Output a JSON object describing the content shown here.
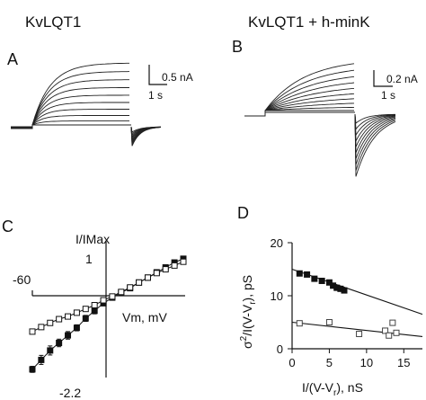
{
  "figure": {
    "panels": {
      "A": {
        "letter": "A",
        "title": "KvLQT1",
        "scale_current": "0.5 nA",
        "scale_time": "1 s"
      },
      "B": {
        "letter": "B",
        "title": "KvLQT1 + h-minK",
        "scale_current": "0.2 nA",
        "scale_time": "1 s"
      },
      "C": {
        "letter": "C"
      },
      "D": {
        "letter": "D"
      }
    }
  },
  "chart_data": [
    {
      "panel": "A",
      "type": "line",
      "description_note": "",
      "n_traces": 10,
      "title": "KvLQT1",
      "scale_bar": {
        "current": "0.5 nA",
        "time": "1 s"
      }
    },
    {
      "panel": "B",
      "type": "line",
      "n_traces": 10,
      "title": "KvLQT1 + h-minK",
      "scale_bar": {
        "current": "0.2 nA",
        "time": "1 s"
      }
    },
    {
      "panel": "C",
      "type": "scatter",
      "xlabel": "Vm, mV",
      "ylabel": "I/IMax",
      "x_tick_label": "-60",
      "y_top_label": "1",
      "y_bottom_label": "-2.2",
      "ylim": [
        -2.2,
        1
      ],
      "series": [
        {
          "marker": "filled-square",
          "x": [
            -130,
            -120,
            -110,
            -100,
            -90,
            -80,
            -70,
            -60,
            -50,
            -40,
            -30,
            -20,
            -10,
            0,
            10,
            20,
            30,
            40
          ],
          "y": [
            -1.95,
            -1.7,
            -1.45,
            -1.25,
            -1.05,
            -0.85,
            -0.6,
            -0.4,
            -0.2,
            -0.05,
            0.08,
            0.2,
            0.35,
            0.48,
            0.62,
            0.75,
            0.88,
            0.98
          ],
          "err": [
            0.08,
            0.12,
            0.12,
            0.1,
            0.1,
            0.08,
            0.08,
            0.08,
            0.06,
            0.05,
            0.05,
            0.05,
            0.05,
            0.05,
            0.05,
            0.05,
            0.05,
            0.05
          ]
        },
        {
          "marker": "open-square",
          "x": [
            -130,
            -120,
            -110,
            -100,
            -90,
            -80,
            -70,
            -60,
            -50,
            -40,
            -30,
            -20,
            -10,
            0,
            10,
            20,
            30,
            40
          ],
          "y": [
            -0.95,
            -0.83,
            -0.72,
            -0.62,
            -0.55,
            -0.45,
            -0.35,
            -0.25,
            -0.12,
            -0.02,
            0.1,
            0.22,
            0.35,
            0.48,
            0.6,
            0.7,
            0.8,
            0.9
          ],
          "err": [
            0.05,
            0.05,
            0.05,
            0.05,
            0.05,
            0.05,
            0.05,
            0.05,
            0.05,
            0.05,
            0.05,
            0.05,
            0.05,
            0.05,
            0.05,
            0.05,
            0.05,
            0.05
          ]
        }
      ]
    },
    {
      "panel": "D",
      "type": "scatter",
      "xlabel_parts": {
        "base": "I/(V-V",
        "sub": "r",
        "tail": "),  nS"
      },
      "ylabel_parts": {
        "sigma": "σ",
        "sup": "2",
        "mid": "/I(V-V",
        "sub": "r",
        "tail": "),  pS"
      },
      "xlim": [
        0,
        17.5
      ],
      "ylim": [
        0,
        20
      ],
      "x_ticks": [
        0,
        5,
        10,
        15
      ],
      "y_ticks": [
        0,
        10,
        20
      ],
      "series": [
        {
          "marker": "filled-square",
          "x": [
            1,
            2,
            3,
            4,
            5,
            5.5,
            6,
            6.5,
            7
          ],
          "y": [
            14.2,
            14.0,
            13.2,
            12.8,
            12.5,
            11.9,
            11.5,
            11.3,
            11.0
          ],
          "fit": {
            "x": [
              0,
              17.5
            ],
            "y": [
              15,
              6.5
            ]
          }
        },
        {
          "marker": "open-square",
          "x": [
            1,
            5,
            9,
            12.5,
            13,
            13.5,
            14
          ],
          "y": [
            4.8,
            5.0,
            2.8,
            3.4,
            2.5,
            4.9,
            3.0
          ],
          "fit": {
            "x": [
              0,
              17.5
            ],
            "y": [
              5,
              2.3
            ]
          }
        }
      ]
    }
  ]
}
